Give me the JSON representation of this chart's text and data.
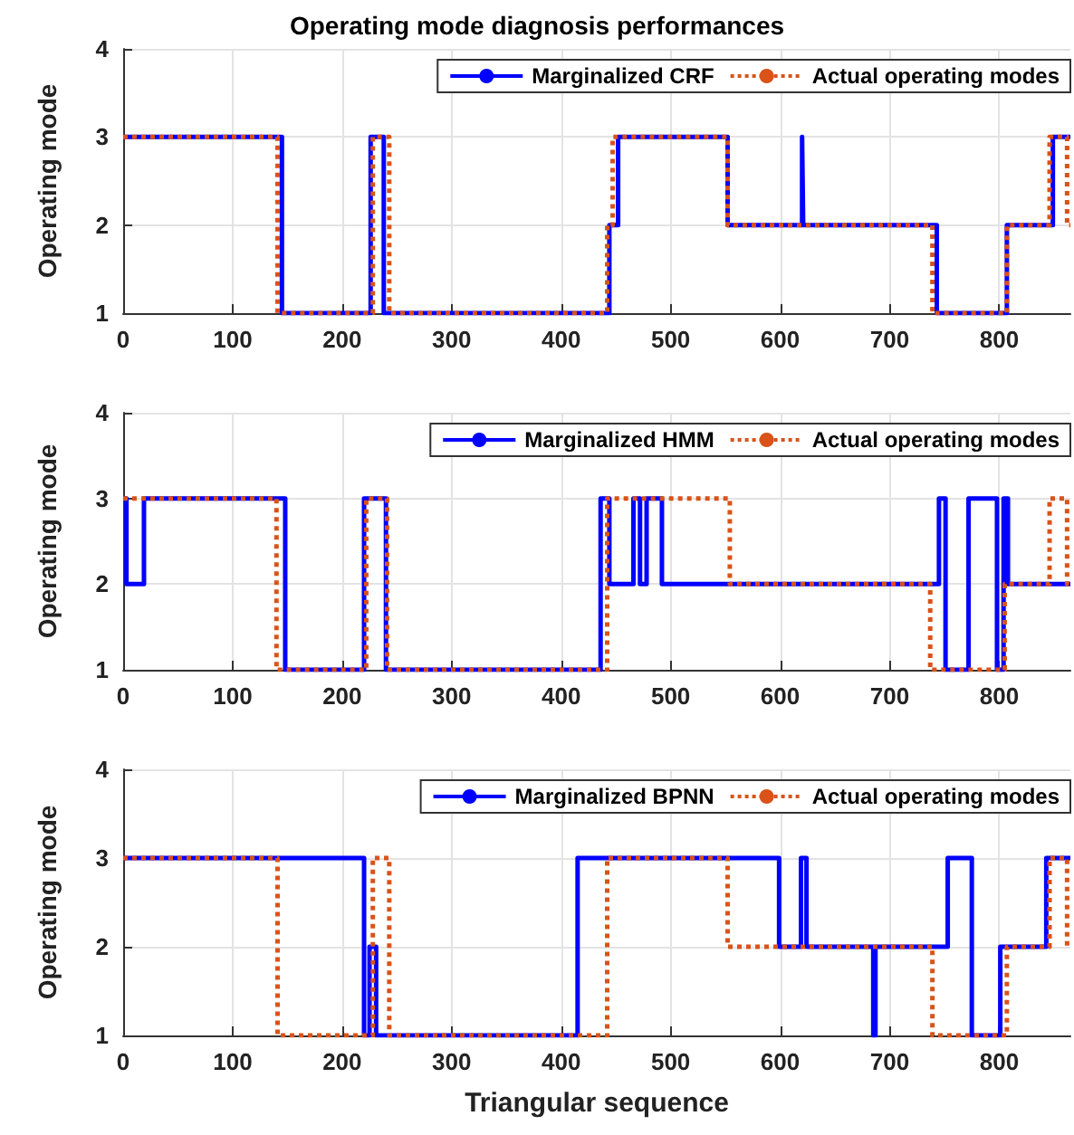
{
  "chart_data": [
    {
      "type": "step",
      "title": "Operating mode diagnosis performances",
      "ylabel": "Operating mode",
      "xlim": [
        0,
        865
      ],
      "xticks": [
        0,
        100,
        200,
        300,
        400,
        500,
        600,
        700,
        800
      ],
      "ylim": [
        1,
        4
      ],
      "yticks": [
        1,
        2,
        3,
        4
      ],
      "grid": true,
      "legend": "top right",
      "marker": "none",
      "series": [
        {
          "name": "Marginalized CRF",
          "color": "#0000ff",
          "line_style": "solid",
          "x": [
            0,
            145,
            226,
            238,
            444,
            452,
            552,
            620,
            621,
            743,
            807,
            849,
            865
          ],
          "values": [
            3,
            1,
            3,
            1,
            2,
            3,
            2,
            3,
            2,
            1,
            2,
            3,
            3
          ]
        },
        {
          "name": "Actual operating modes",
          "color": "#d95319",
          "line_style": "dotted",
          "x": [
            0,
            141,
            228,
            243,
            442,
            447,
            552,
            739,
            807,
            846,
            862,
            865
          ],
          "values": [
            3,
            1,
            3,
            1,
            2,
            3,
            2,
            1,
            2,
            3,
            2,
            2
          ]
        }
      ]
    },
    {
      "type": "step",
      "ylabel": "Operating mode",
      "xlim": [
        0,
        865
      ],
      "xticks": [
        0,
        100,
        200,
        300,
        400,
        500,
        600,
        700,
        800
      ],
      "ylim": [
        1,
        4
      ],
      "yticks": [
        1,
        2,
        3,
        4
      ],
      "grid": true,
      "legend": "top right",
      "marker": "none",
      "series": [
        {
          "name": "Marginalized HMM",
          "color": "#0000ff",
          "line_style": "solid",
          "x": [
            0,
            3,
            19,
            148,
            220,
            240,
            436,
            444,
            466,
            472,
            478,
            492,
            745,
            751,
            772,
            798,
            804,
            808,
            865
          ],
          "values": [
            3,
            2,
            3,
            1,
            3,
            1,
            3,
            2,
            3,
            2,
            3,
            2,
            3,
            1,
            3,
            1,
            3,
            2,
            2
          ]
        },
        {
          "name": "Actual operating modes",
          "color": "#d95319",
          "line_style": "dotted",
          "x": [
            0,
            140,
            222,
            241,
            442,
            554,
            737,
            805,
            846,
            862,
            865
          ],
          "values": [
            3,
            1,
            3,
            1,
            3,
            2,
            1,
            2,
            3,
            2,
            2
          ]
        }
      ]
    },
    {
      "type": "step",
      "ylabel": "Operating mode",
      "xlabel": "Triangular sequence",
      "xlim": [
        0,
        865
      ],
      "xticks": [
        0,
        100,
        200,
        300,
        400,
        500,
        600,
        700,
        800
      ],
      "ylim": [
        1,
        4
      ],
      "yticks": [
        1,
        2,
        3,
        4
      ],
      "grid": true,
      "legend": "top right",
      "marker": "none",
      "series": [
        {
          "name": "Marginalized BPNN",
          "color": "#0000ff",
          "line_style": "solid",
          "x": [
            0,
            220,
            225,
            231,
            415,
            599,
            619,
            624,
            685,
            687,
            753,
            775,
            801,
            843,
            865
          ],
          "values": [
            3,
            1,
            2,
            1,
            3,
            2,
            3,
            2,
            1,
            2,
            3,
            1,
            2,
            3,
            3
          ]
        },
        {
          "name": "Actual operating modes",
          "color": "#d95319",
          "line_style": "dotted",
          "x": [
            0,
            141,
            228,
            243,
            442,
            552,
            739,
            807,
            846,
            862,
            865
          ],
          "values": [
            3,
            1,
            3,
            1,
            3,
            2,
            1,
            2,
            3,
            2,
            2
          ]
        }
      ]
    }
  ]
}
